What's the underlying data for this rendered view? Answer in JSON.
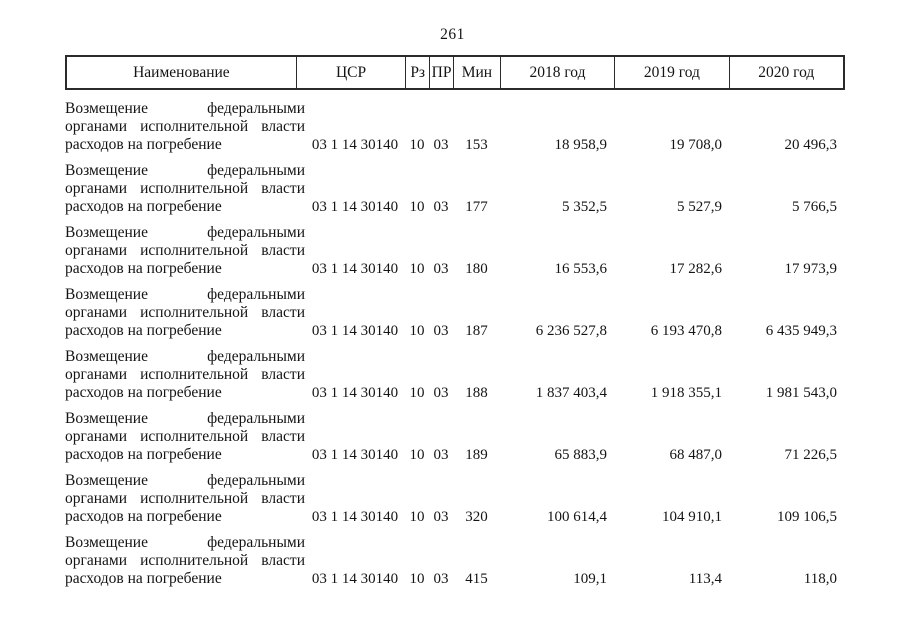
{
  "page": {
    "number": "261"
  },
  "colors": {
    "text": "#141414",
    "border": "#2b2b2b",
    "background": "#ffffff"
  },
  "table": {
    "headers": {
      "name": "Наименование",
      "csr": "ЦСР",
      "rz": "Рз",
      "pr": "ПР",
      "min": "Мин",
      "y2018": "2018 год",
      "y2019": "2019 год",
      "y2020": "2020 год"
    },
    "rows": [
      {
        "name_lines": [
          "Возмещение федеральными",
          "органами исполнительной власти",
          "расходов на погребение"
        ],
        "csr": "03 1 14 30140",
        "rz": "10",
        "pr": "03",
        "min": "153",
        "y2018": "18 958,9",
        "y2019": "19 708,0",
        "y2020": "20 496,3"
      },
      {
        "name_lines": [
          "Возмещение федеральными",
          "органами исполнительной власти",
          "расходов на погребение"
        ],
        "csr": "03 1 14 30140",
        "rz": "10",
        "pr": "03",
        "min": "177",
        "y2018": "5 352,5",
        "y2019": "5 527,9",
        "y2020": "5 766,5"
      },
      {
        "name_lines": [
          "Возмещение федеральными",
          "органами исполнительной власти",
          "расходов на погребение"
        ],
        "csr": "03 1 14 30140",
        "rz": "10",
        "pr": "03",
        "min": "180",
        "y2018": "16 553,6",
        "y2019": "17 282,6",
        "y2020": "17 973,9"
      },
      {
        "name_lines": [
          "Возмещение федеральными",
          "органами исполнительной власти",
          "расходов на погребение"
        ],
        "csr": "03 1 14 30140",
        "rz": "10",
        "pr": "03",
        "min": "187",
        "y2018": "6 236 527,8",
        "y2019": "6 193 470,8",
        "y2020": "6 435 949,3"
      },
      {
        "name_lines": [
          "Возмещение федеральными",
          "органами исполнительной власти",
          "расходов на погребение"
        ],
        "csr": "03 1 14 30140",
        "rz": "10",
        "pr": "03",
        "min": "188",
        "y2018": "1 837 403,4",
        "y2019": "1 918 355,1",
        "y2020": "1 981 543,0"
      },
      {
        "name_lines": [
          "Возмещение федеральными",
          "органами исполнительной власти",
          "расходов на погребение"
        ],
        "csr": "03 1 14 30140",
        "rz": "10",
        "pr": "03",
        "min": "189",
        "y2018": "65 883,9",
        "y2019": "68 487,0",
        "y2020": "71 226,5"
      },
      {
        "name_lines": [
          "Возмещение федеральными",
          "органами исполнительной власти",
          "расходов на погребение"
        ],
        "csr": "03 1 14 30140",
        "rz": "10",
        "pr": "03",
        "min": "320",
        "y2018": "100 614,4",
        "y2019": "104 910,1",
        "y2020": "109 106,5"
      },
      {
        "name_lines": [
          "Возмещение федеральными",
          "органами исполнительной власти",
          "расходов на погребение"
        ],
        "csr": "03 1 14 30140",
        "rz": "10",
        "pr": "03",
        "min": "415",
        "y2018": "109,1",
        "y2019": "113,4",
        "y2020": "118,0"
      }
    ]
  }
}
